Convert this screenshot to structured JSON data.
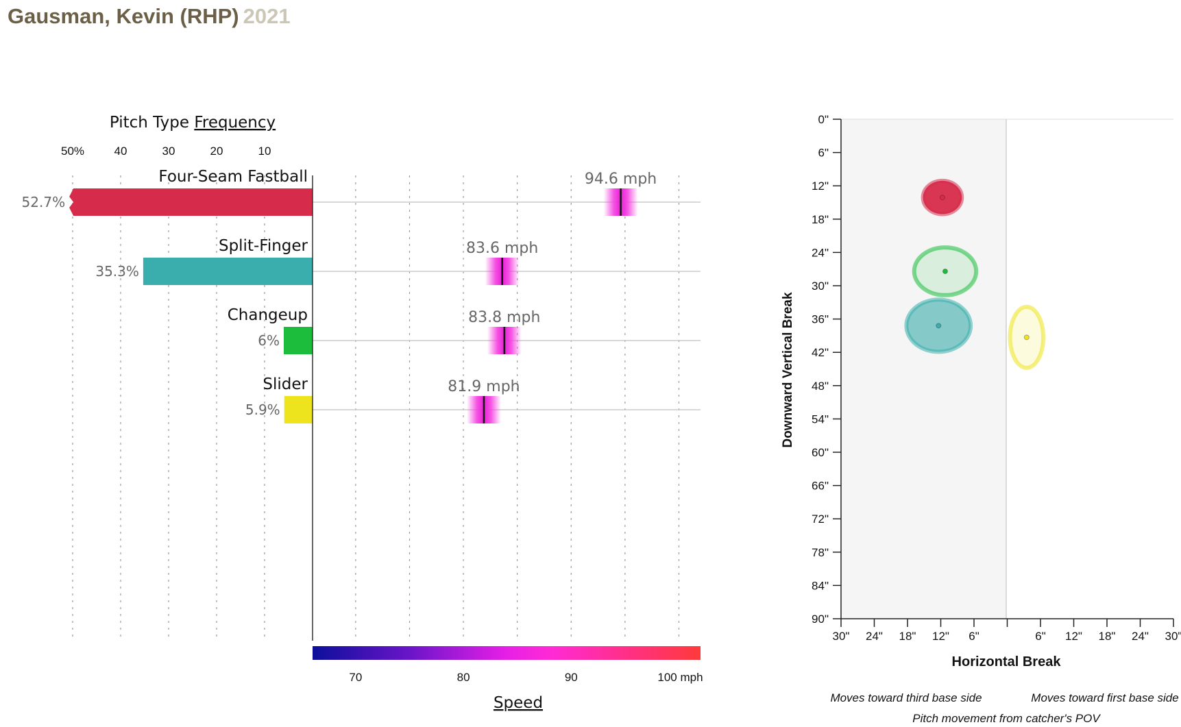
{
  "header": {
    "name": "Gausman, Kevin (RHP)",
    "year": "2021"
  },
  "frequency_chart": {
    "title_prefix": "Pitch Type ",
    "title_link": "Frequency",
    "axis_ticks": [
      "50%",
      "40",
      "30",
      "20",
      "10"
    ]
  },
  "speed_axis": {
    "ticks": [
      "70",
      "80",
      "90",
      "100 mph"
    ],
    "title": "Speed"
  },
  "movement_chart": {
    "y_title": "Downward Vertical Break",
    "x_title": "Horizontal Break",
    "y_ticks": [
      "0\"",
      "6\"",
      "12\"",
      "18\"",
      "24\"",
      "30\"",
      "36\"",
      "42\"",
      "48\"",
      "54\"",
      "60\"",
      "66\"",
      "72\"",
      "78\"",
      "84\"",
      "90\""
    ],
    "x_ticks": [
      "30\"",
      "24\"",
      "18\"",
      "12\"",
      "6\"",
      "",
      "6\"",
      "12\"",
      "18\"",
      "24\"",
      "30\""
    ],
    "caption_left": "Moves toward third base side",
    "caption_right": "Moves toward first base side",
    "caption_bottom": "Pitch movement from catcher's POV"
  },
  "colors": {
    "four_seam": "#d62b4a",
    "split_finger": "#3aaeac",
    "changeup": "#1cbd3c",
    "slider": "#ede41e",
    "title_brown": "#6b5f47",
    "year_gray": "#cbc6b6"
  },
  "chart_data": [
    {
      "type": "bar",
      "title": "Pitch Type Frequency",
      "categories": [
        "Four-Seam Fastball",
        "Split-Finger",
        "Changeup",
        "Slider"
      ],
      "values": [
        52.7,
        35.3,
        6,
        5.9
      ],
      "value_labels": [
        "52.7%",
        "35.3%",
        "6%",
        "5.9%"
      ],
      "xlim": [
        0,
        50
      ],
      "colors": [
        "#d62b4a",
        "#3aaeac",
        "#1cbd3c",
        "#ede41e"
      ]
    },
    {
      "type": "scatter",
      "title": "Speed",
      "categories": [
        "Four-Seam Fastball",
        "Split-Finger",
        "Changeup",
        "Slider"
      ],
      "values": [
        94.6,
        83.6,
        83.8,
        81.9
      ],
      "value_labels": [
        "94.6 mph",
        "83.6 mph",
        "83.8 mph",
        "81.9 mph"
      ],
      "xlim": [
        66,
        102
      ],
      "xlabel": "Speed"
    },
    {
      "type": "scatter",
      "title": "Pitch movement from catcher's POV",
      "xlabel": "Horizontal Break",
      "ylabel": "Downward Vertical Break",
      "xlim": [
        -30,
        30
      ],
      "ylim": [
        0,
        90
      ],
      "points": [
        {
          "name": "Four-Seam Fastball",
          "x": -11.7,
          "y": 14.1,
          "sx": 3.5,
          "sy": 3.0,
          "color": "#d62b4a",
          "fill_opacity": 0.95
        },
        {
          "name": "Split-Finger",
          "x": -12.4,
          "y": 37.2,
          "sx": 5.8,
          "sy": 4.7,
          "color": "#3aaeac",
          "fill_opacity": 0.6
        },
        {
          "name": "Changeup",
          "x": -11.2,
          "y": 27.4,
          "sx": 5.6,
          "sy": 4.3,
          "color": "#1cbd3c",
          "fill_opacity": 0.12
        },
        {
          "name": "Slider",
          "x": 3.5,
          "y": 39.3,
          "sx": 3.0,
          "sy": 5.5,
          "color": "#ede41e",
          "fill_opacity": 0.15
        }
      ]
    }
  ]
}
